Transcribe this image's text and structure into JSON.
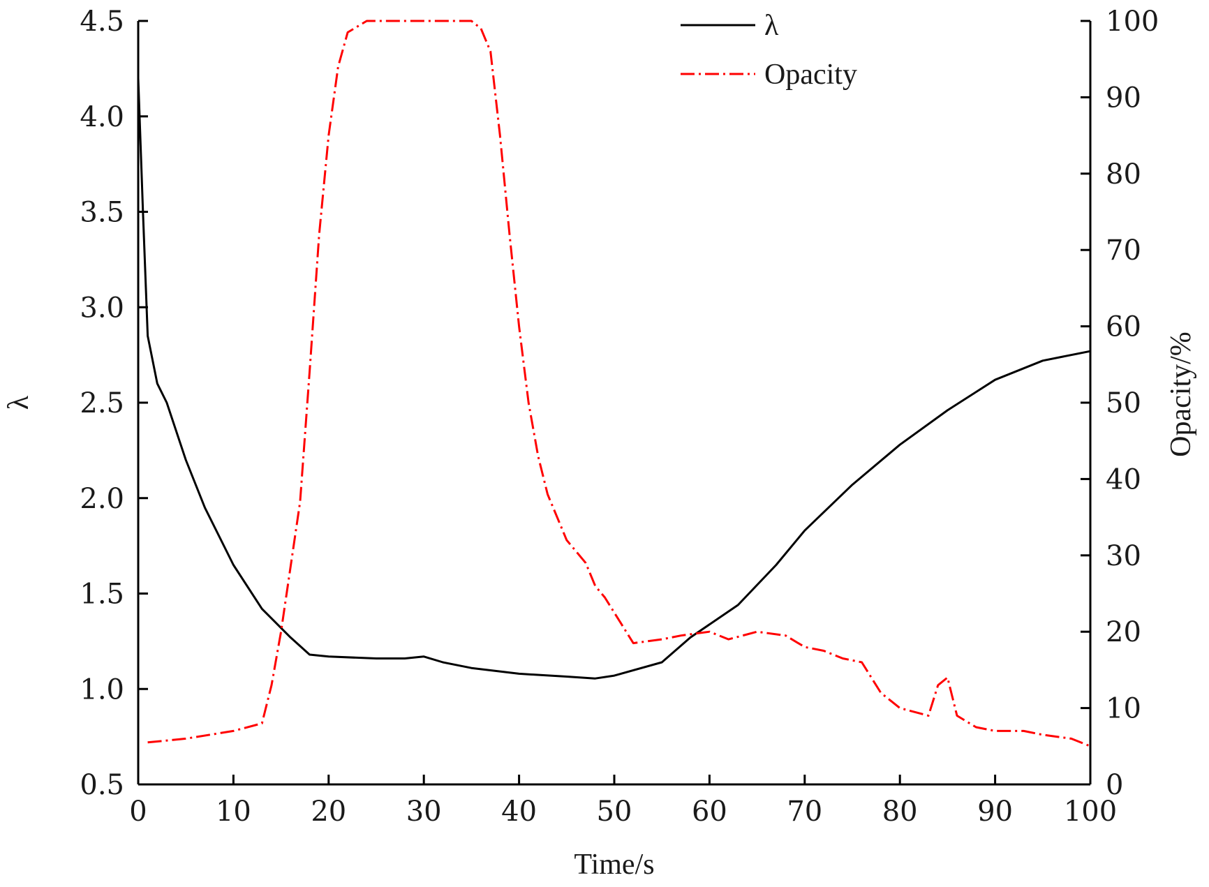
{
  "chart_data": {
    "type": "line",
    "title": "",
    "xlabel": "Time/s",
    "ylabel_left": "λ",
    "ylabel_right": "Opacity/%",
    "xlim": [
      0,
      100
    ],
    "ylim_left": [
      0.5,
      4.5
    ],
    "ylim_right": [
      0,
      100
    ],
    "x_ticks": [
      "0",
      "10",
      "20",
      "30",
      "40",
      "50",
      "60",
      "70",
      "80",
      "90",
      "100"
    ],
    "y_left_ticks": [
      "0.5",
      "1.0",
      "1.5",
      "2.0",
      "2.5",
      "3.0",
      "3.5",
      "4.0",
      "4.5"
    ],
    "y_right_ticks": [
      "0",
      "10",
      "20",
      "30",
      "40",
      "50",
      "60",
      "70",
      "80",
      "90",
      "100"
    ],
    "grid": false,
    "legend_position": "top-center",
    "series": [
      {
        "name": "λ",
        "axis": "left",
        "color": "#000000",
        "style": "solid",
        "x": [
          0,
          0.5,
          1,
          2,
          3,
          5,
          7,
          10,
          13,
          16,
          18,
          20,
          25,
          28,
          30,
          32,
          35,
          40,
          45,
          48,
          50,
          55,
          58,
          63,
          67,
          70,
          75,
          80,
          85,
          90,
          95,
          100
        ],
        "y": [
          4.2,
          3.5,
          2.85,
          2.6,
          2.5,
          2.2,
          1.95,
          1.65,
          1.42,
          1.27,
          1.18,
          1.17,
          1.16,
          1.16,
          1.17,
          1.14,
          1.11,
          1.08,
          1.065,
          1.055,
          1.07,
          1.14,
          1.27,
          1.44,
          1.65,
          1.83,
          2.07,
          2.28,
          2.46,
          2.62,
          2.72,
          2.77
        ]
      },
      {
        "name": "Opacity",
        "axis": "right",
        "color": "#ff0000",
        "style": "dashdot",
        "x": [
          1,
          5,
          10,
          13,
          14,
          15,
          17,
          18,
          19,
          20,
          21,
          22,
          24,
          26,
          28,
          30,
          32,
          35,
          36,
          37,
          38,
          39,
          40,
          41,
          42,
          43,
          45,
          47,
          48,
          49,
          52,
          55,
          57,
          60,
          62,
          65,
          68,
          70,
          72,
          74,
          76,
          78,
          80,
          83,
          84,
          85,
          86,
          88,
          90,
          93,
          95,
          98,
          100
        ],
        "y": [
          5.5,
          6,
          7,
          8,
          13,
          20,
          37,
          54,
          72,
          85,
          94,
          98.5,
          100,
          100,
          100,
          100,
          100,
          100,
          99,
          96,
          85,
          72,
          60,
          50,
          43,
          38,
          32,
          29,
          26,
          24.5,
          18.5,
          19,
          19.5,
          20,
          19,
          20,
          19.5,
          18,
          17.5,
          16.5,
          16,
          12,
          10,
          9,
          13,
          14,
          9,
          7.5,
          7,
          7,
          6.5,
          6,
          5
        ]
      }
    ]
  }
}
